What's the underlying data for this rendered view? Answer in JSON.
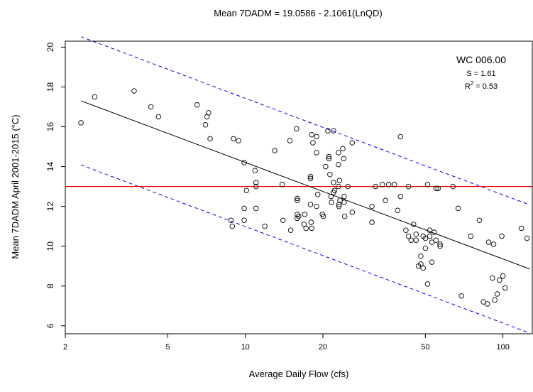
{
  "chart_data": {
    "type": "scatter",
    "title": "Mean 7DADM = 19.0586 - 2.1061(LnQD)",
    "xlabel": "Average Daily Flow (cfs)",
    "ylabel": "Mean 7DADM April 2001-2015 (°C)",
    "x_scale": "log",
    "xlim": [
      2.0,
      130
    ],
    "ylim": [
      5.6,
      20.3
    ],
    "x_ticks": [
      2,
      5,
      10,
      20,
      50,
      100
    ],
    "x_tick_labels": [
      "2",
      "5",
      "10",
      "20",
      "50",
      "100"
    ],
    "y_ticks": [
      6,
      8,
      10,
      12,
      14,
      16,
      18,
      20
    ],
    "y_tick_labels": [
      "6",
      "8",
      "10",
      "12",
      "14",
      "16",
      "18",
      "20"
    ],
    "grid": false,
    "annotations": {
      "station": "WC 006.00",
      "s_label": "S = 1.61",
      "r2_prefix": "R",
      "r2_sup": "2",
      "r2_suffix": " = 0.53"
    },
    "regression": {
      "intercept": 19.0586,
      "slope": -2.1061,
      "x_range": [
        2.3,
        127
      ],
      "color": "#000000"
    },
    "prediction_bands": {
      "offset": 3.22,
      "x_range": [
        2.3,
        127
      ],
      "color": "#0000ee"
    },
    "threshold": {
      "y": 13.0,
      "color": "#ee0000"
    },
    "points": [
      {
        "x": 2.3,
        "y": 16.2
      },
      {
        "x": 2.6,
        "y": 17.5
      },
      {
        "x": 3.7,
        "y": 17.8
      },
      {
        "x": 4.3,
        "y": 17.0
      },
      {
        "x": 4.6,
        "y": 16.5
      },
      {
        "x": 6.5,
        "y": 17.1
      },
      {
        "x": 7.0,
        "y": 16.1
      },
      {
        "x": 7.1,
        "y": 16.5
      },
      {
        "x": 7.2,
        "y": 16.7
      },
      {
        "x": 7.3,
        "y": 15.4
      },
      {
        "x": 8.8,
        "y": 11.3
      },
      {
        "x": 8.9,
        "y": 11.0
      },
      {
        "x": 9.0,
        "y": 15.4
      },
      {
        "x": 9.4,
        "y": 15.3
      },
      {
        "x": 9.9,
        "y": 14.2
      },
      {
        "x": 9.9,
        "y": 11.9
      },
      {
        "x": 9.9,
        "y": 11.3
      },
      {
        "x": 10.1,
        "y": 12.8
      },
      {
        "x": 10.9,
        "y": 13.8
      },
      {
        "x": 11.0,
        "y": 13.2
      },
      {
        "x": 11.0,
        "y": 13.0
      },
      {
        "x": 11.0,
        "y": 11.9
      },
      {
        "x": 11.9,
        "y": 11.0
      },
      {
        "x": 13.0,
        "y": 14.8
      },
      {
        "x": 13.9,
        "y": 13.1
      },
      {
        "x": 14.0,
        "y": 11.3
      },
      {
        "x": 14.9,
        "y": 15.3
      },
      {
        "x": 15.0,
        "y": 10.8
      },
      {
        "x": 15.8,
        "y": 15.9
      },
      {
        "x": 15.9,
        "y": 12.3
      },
      {
        "x": 15.9,
        "y": 12.4
      },
      {
        "x": 15.9,
        "y": 11.6
      },
      {
        "x": 15.9,
        "y": 11.4
      },
      {
        "x": 16.1,
        "y": 11.5
      },
      {
        "x": 16.9,
        "y": 11.1
      },
      {
        "x": 17.0,
        "y": 11.6
      },
      {
        "x": 17.2,
        "y": 10.9
      },
      {
        "x": 17.9,
        "y": 13.4
      },
      {
        "x": 17.9,
        "y": 13.5
      },
      {
        "x": 17.9,
        "y": 12.1
      },
      {
        "x": 18.0,
        "y": 11.2
      },
      {
        "x": 18.1,
        "y": 10.9
      },
      {
        "x": 18.1,
        "y": 15.6
      },
      {
        "x": 18.3,
        "y": 15.2
      },
      {
        "x": 18.9,
        "y": 15.5
      },
      {
        "x": 18.9,
        "y": 14.7
      },
      {
        "x": 18.9,
        "y": 12.0
      },
      {
        "x": 19.1,
        "y": 12.6
      },
      {
        "x": 19.9,
        "y": 11.6
      },
      {
        "x": 20.1,
        "y": 11.5
      },
      {
        "x": 20.5,
        "y": 14.0
      },
      {
        "x": 20.9,
        "y": 15.8
      },
      {
        "x": 21.1,
        "y": 14.5
      },
      {
        "x": 21.1,
        "y": 14.4
      },
      {
        "x": 21.3,
        "y": 13.6
      },
      {
        "x": 21.5,
        "y": 12.5
      },
      {
        "x": 21.6,
        "y": 12.2
      },
      {
        "x": 22.0,
        "y": 15.8
      },
      {
        "x": 22.0,
        "y": 13.2
      },
      {
        "x": 22.0,
        "y": 12.7
      },
      {
        "x": 22.2,
        "y": 12.8
      },
      {
        "x": 23.0,
        "y": 14.7
      },
      {
        "x": 23.0,
        "y": 14.1
      },
      {
        "x": 23.0,
        "y": 13.0
      },
      {
        "x": 23.1,
        "y": 12.1
      },
      {
        "x": 23.1,
        "y": 12.0
      },
      {
        "x": 23.2,
        "y": 13.3
      },
      {
        "x": 23.3,
        "y": 12.3
      },
      {
        "x": 23.9,
        "y": 14.9
      },
      {
        "x": 24.1,
        "y": 14.4
      },
      {
        "x": 24.2,
        "y": 12.2
      },
      {
        "x": 24.2,
        "y": 12.5
      },
      {
        "x": 24.3,
        "y": 11.5
      },
      {
        "x": 25.0,
        "y": 13.0
      },
      {
        "x": 26.0,
        "y": 15.2
      },
      {
        "x": 26.0,
        "y": 11.7
      },
      {
        "x": 31.0,
        "y": 12.0
      },
      {
        "x": 31.0,
        "y": 11.2
      },
      {
        "x": 32.0,
        "y": 13.0
      },
      {
        "x": 34.0,
        "y": 13.1
      },
      {
        "x": 35.0,
        "y": 12.3
      },
      {
        "x": 36.0,
        "y": 13.1
      },
      {
        "x": 37.9,
        "y": 13.1
      },
      {
        "x": 39.0,
        "y": 11.8
      },
      {
        "x": 40.0,
        "y": 15.5
      },
      {
        "x": 40.0,
        "y": 12.5
      },
      {
        "x": 42.0,
        "y": 10.8
      },
      {
        "x": 43.0,
        "y": 10.5
      },
      {
        "x": 43.0,
        "y": 13.0
      },
      {
        "x": 44.0,
        "y": 10.3
      },
      {
        "x": 45.0,
        "y": 11.1
      },
      {
        "x": 46.0,
        "y": 10.6
      },
      {
        "x": 46.0,
        "y": 10.3
      },
      {
        "x": 47.0,
        "y": 9.0
      },
      {
        "x": 48.0,
        "y": 9.1
      },
      {
        "x": 48.0,
        "y": 9.5
      },
      {
        "x": 49.0,
        "y": 10.5
      },
      {
        "x": 49.0,
        "y": 8.9
      },
      {
        "x": 50.0,
        "y": 9.9
      },
      {
        "x": 50.0,
        "y": 10.4
      },
      {
        "x": 51.0,
        "y": 13.1
      },
      {
        "x": 51.0,
        "y": 8.1
      },
      {
        "x": 52.0,
        "y": 10.8
      },
      {
        "x": 52.0,
        "y": 10.5
      },
      {
        "x": 53.0,
        "y": 10.2
      },
      {
        "x": 53.0,
        "y": 9.2
      },
      {
        "x": 54.0,
        "y": 10.7
      },
      {
        "x": 55.0,
        "y": 12.9
      },
      {
        "x": 55.0,
        "y": 10.3
      },
      {
        "x": 56.0,
        "y": 12.9
      },
      {
        "x": 57.0,
        "y": 10.1
      },
      {
        "x": 57.0,
        "y": 10.0
      },
      {
        "x": 64.0,
        "y": 13.0
      },
      {
        "x": 67.0,
        "y": 11.9
      },
      {
        "x": 69.0,
        "y": 7.5
      },
      {
        "x": 75.0,
        "y": 10.5
      },
      {
        "x": 81.0,
        "y": 11.3
      },
      {
        "x": 84.0,
        "y": 7.2
      },
      {
        "x": 87.0,
        "y": 7.1
      },
      {
        "x": 88.0,
        "y": 10.2
      },
      {
        "x": 91.0,
        "y": 8.4
      },
      {
        "x": 92.0,
        "y": 10.1
      },
      {
        "x": 93.0,
        "y": 7.3
      },
      {
        "x": 95.0,
        "y": 7.6
      },
      {
        "x": 97.0,
        "y": 8.3
      },
      {
        "x": 99.0,
        "y": 10.5
      },
      {
        "x": 100.0,
        "y": 8.5
      },
      {
        "x": 102.0,
        "y": 7.9
      },
      {
        "x": 118.0,
        "y": 10.9
      },
      {
        "x": 124.0,
        "y": 10.4
      }
    ]
  }
}
